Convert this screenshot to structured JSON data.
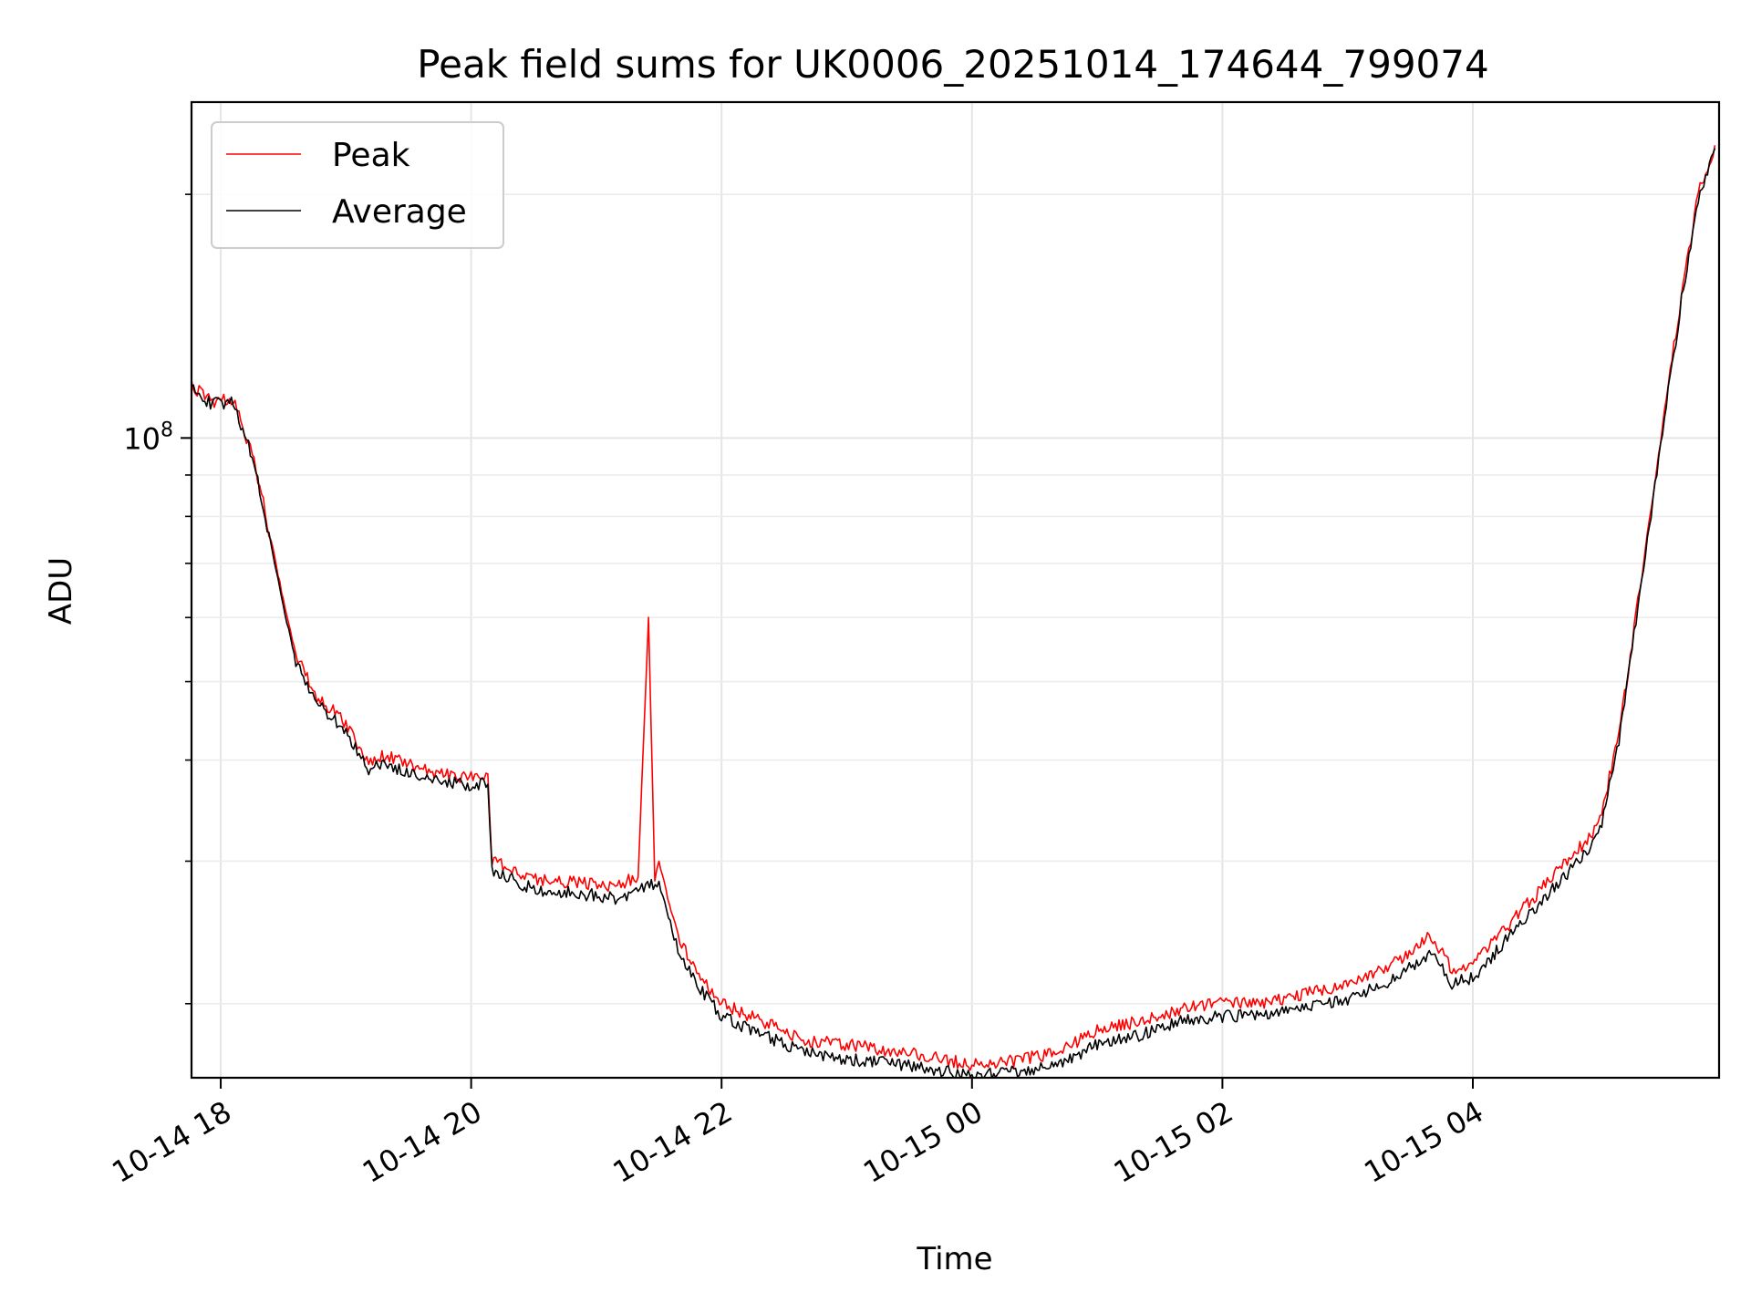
{
  "chart_data": {
    "type": "line",
    "title": "Peak field sums for UK0006_20251014_174644_799074",
    "xlabel": "Time",
    "ylabel": "ADU",
    "x_axis_type": "datetime",
    "y_scale": "log",
    "xlim": [
      "2025-10-14 17:46",
      "2025-10-15 05:58"
    ],
    "ylim": [
      16200000,
      260000000
    ],
    "x_tick_labels": [
      "10-14 18",
      "10-14 20",
      "10-14 22",
      "10-15 00",
      "10-15 02",
      "10-15 04"
    ],
    "x_ticks": [
      "2025-10-14 18:00",
      "2025-10-14 20:00",
      "2025-10-14 22:00",
      "2025-10-15 00:00",
      "2025-10-15 02:00",
      "2025-10-15 04:00"
    ],
    "y_tick_labels": [
      {
        "base": "10",
        "exp": "8"
      }
    ],
    "y_ticks": [
      100000000
    ],
    "y_minor_ticks": [
      20000000,
      30000000,
      40000000,
      50000000,
      60000000,
      70000000,
      80000000,
      90000000,
      200000000
    ],
    "grid": true,
    "legend_position": "upper-left",
    "series": [
      {
        "name": "Peak",
        "color": "#ff0000",
        "x": [
          "2025-10-14 17:46",
          "2025-10-14 17:56",
          "2025-10-14 18:06",
          "2025-10-14 18:16",
          "2025-10-14 18:24",
          "2025-10-14 18:30",
          "2025-10-14 18:36",
          "2025-10-14 18:46",
          "2025-10-14 19:00",
          "2025-10-14 19:10",
          "2025-10-14 19:20",
          "2025-10-14 19:30",
          "2025-10-14 19:45",
          "2025-10-14 20:00",
          "2025-10-14 20:08",
          "2025-10-14 20:10",
          "2025-10-14 20:30",
          "2025-10-14 20:50",
          "2025-10-14 21:10",
          "2025-10-14 21:20",
          "2025-10-14 21:25",
          "2025-10-14 21:28",
          "2025-10-14 21:30",
          "2025-10-14 21:35",
          "2025-10-14 21:40",
          "2025-10-14 21:50",
          "2025-10-14 22:00",
          "2025-10-14 22:20",
          "2025-10-14 22:40",
          "2025-10-14 23:00",
          "2025-10-14 23:20",
          "2025-10-14 23:40",
          "2025-10-15 00:00",
          "2025-10-15 00:20",
          "2025-10-15 00:40",
          "2025-10-15 01:00",
          "2025-10-15 01:20",
          "2025-10-15 01:40",
          "2025-10-15 02:00",
          "2025-10-15 02:20",
          "2025-10-15 02:40",
          "2025-10-15 03:00",
          "2025-10-15 03:20",
          "2025-10-15 03:40",
          "2025-10-15 03:50",
          "2025-10-15 04:00",
          "2025-10-15 04:20",
          "2025-10-15 04:40",
          "2025-10-15 05:00",
          "2025-10-15 05:10",
          "2025-10-15 05:20",
          "2025-10-15 05:30",
          "2025-10-15 05:40",
          "2025-10-15 05:48",
          "2025-10-15 05:56"
        ],
        "y": [
          116000000,
          111000000,
          112000000,
          94000000,
          75000000,
          63000000,
          54000000,
          48000000,
          44500000,
          40000000,
          40500000,
          39500000,
          38500000,
          38000000,
          38300000,
          30000000,
          28500000,
          28200000,
          28000000,
          28800000,
          60000000,
          28500000,
          30000000,
          26500000,
          24000000,
          21500000,
          20000000,
          19000000,
          18000000,
          17800000,
          17500000,
          17200000,
          16800000,
          17000000,
          17400000,
          18500000,
          19000000,
          19700000,
          20000000,
          20000000,
          20600000,
          21000000,
          22200000,
          24300000,
          22000000,
          22300000,
          25500000,
          29000000,
          33000000,
          43000000,
          65000000,
          100000000,
          150000000,
          200000000,
          230000000
        ]
      },
      {
        "name": "Average",
        "color": "#000000",
        "x": [
          "2025-10-14 17:46",
          "2025-10-14 17:56",
          "2025-10-14 18:06",
          "2025-10-14 18:16",
          "2025-10-14 18:24",
          "2025-10-14 18:30",
          "2025-10-14 18:36",
          "2025-10-14 18:46",
          "2025-10-14 19:00",
          "2025-10-14 19:10",
          "2025-10-14 19:20",
          "2025-10-14 19:30",
          "2025-10-14 19:45",
          "2025-10-14 20:00",
          "2025-10-14 20:08",
          "2025-10-14 20:10",
          "2025-10-14 20:30",
          "2025-10-14 20:50",
          "2025-10-14 21:10",
          "2025-10-14 21:20",
          "2025-10-14 21:30",
          "2025-10-14 21:40",
          "2025-10-14 21:50",
          "2025-10-14 22:00",
          "2025-10-14 22:20",
          "2025-10-14 22:40",
          "2025-10-14 23:00",
          "2025-10-14 23:20",
          "2025-10-14 23:40",
          "2025-10-15 00:00",
          "2025-10-15 00:20",
          "2025-10-15 00:40",
          "2025-10-15 01:00",
          "2025-10-15 01:20",
          "2025-10-15 01:40",
          "2025-10-15 02:00",
          "2025-10-15 02:20",
          "2025-10-15 02:40",
          "2025-10-15 03:00",
          "2025-10-15 03:20",
          "2025-10-15 03:40",
          "2025-10-15 03:50",
          "2025-10-15 04:00",
          "2025-10-15 04:20",
          "2025-10-15 04:40",
          "2025-10-15 05:00",
          "2025-10-15 05:10",
          "2025-10-15 05:20",
          "2025-10-15 05:30",
          "2025-10-15 05:40",
          "2025-10-15 05:48",
          "2025-10-15 05:56"
        ],
        "y": [
          115000000,
          110000000,
          111000000,
          93000000,
          74000000,
          62000000,
          53000000,
          47000000,
          43500000,
          39000000,
          39500000,
          38500000,
          37800000,
          37200000,
          37500000,
          29200000,
          27700000,
          27400000,
          27000000,
          27600000,
          28200000,
          23000000,
          20800000,
          19300000,
          18300000,
          17400000,
          17100000,
          16900000,
          16600000,
          16300000,
          16500000,
          16800000,
          17800000,
          18300000,
          19000000,
          19300000,
          19300000,
          19900000,
          20200000,
          21300000,
          23200000,
          21200000,
          21500000,
          24600000,
          28000000,
          32000000,
          42000000,
          64000000,
          98000000,
          148000000,
          198000000,
          228000000
        ]
      }
    ]
  }
}
